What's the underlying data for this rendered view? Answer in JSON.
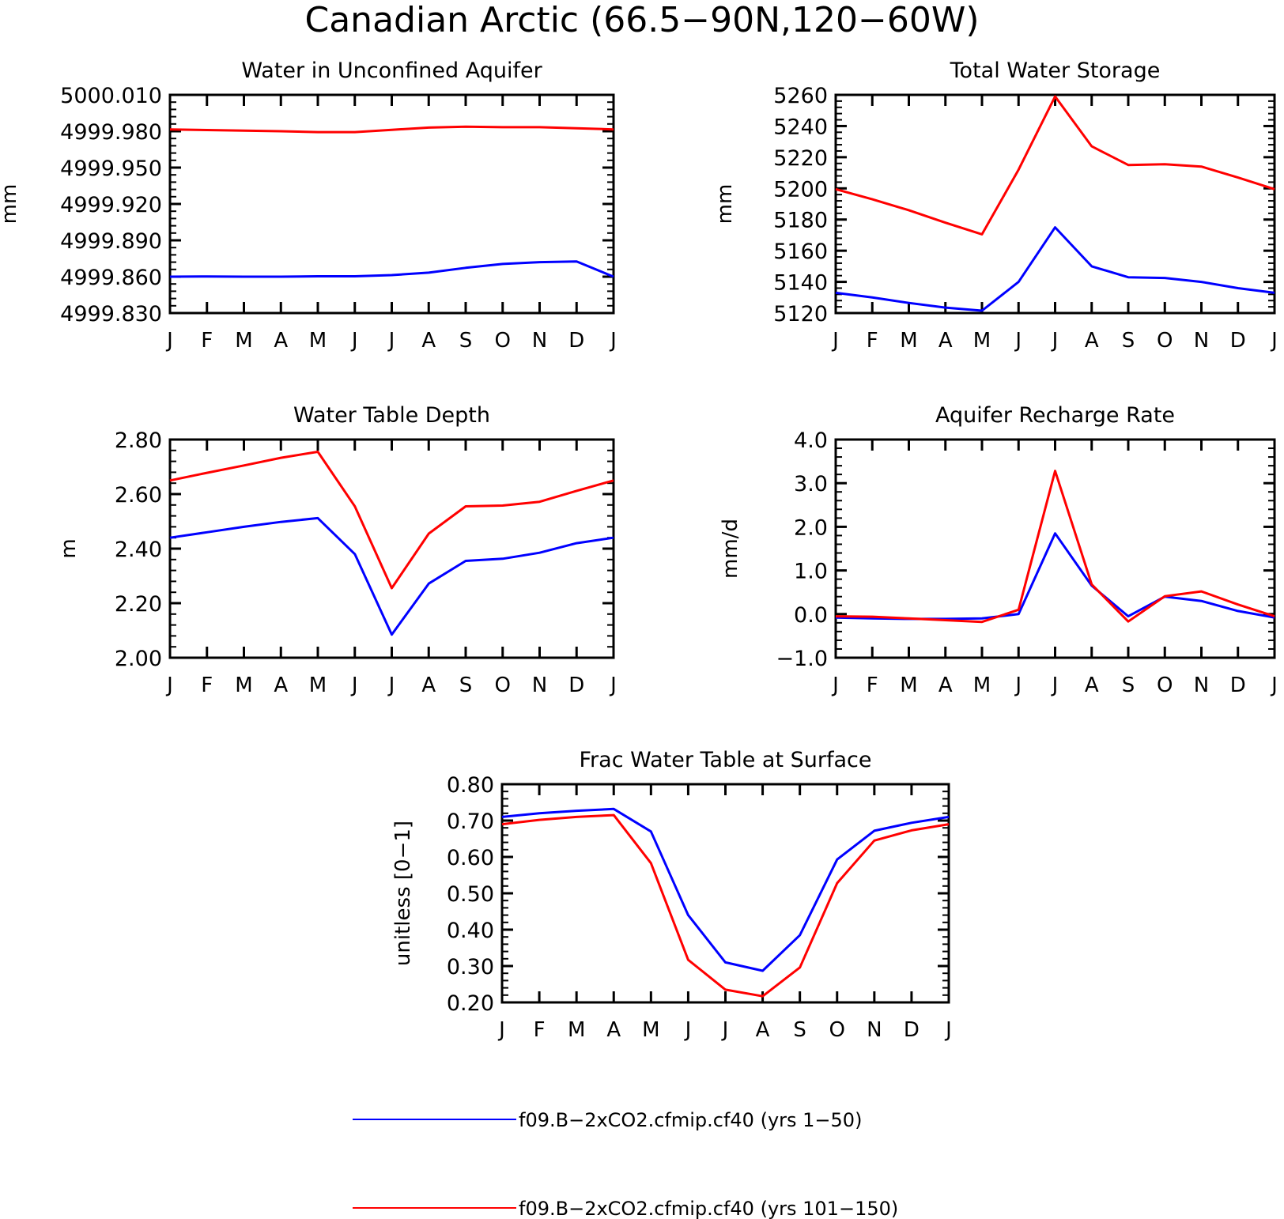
{
  "title": "Canadian Arctic (66.5−90N,120−60W)",
  "months": [
    "J",
    "F",
    "M",
    "A",
    "M",
    "J",
    "J",
    "A",
    "S",
    "O",
    "N",
    "D",
    "J"
  ],
  "colors": {
    "run1": "#0000ff",
    "run2": "#ff0000",
    "axis": "#000000"
  },
  "legend": [
    {
      "label": "f09.B−2xCO2.cfmip.cf40 (yrs 1−50)",
      "color": "#0000ff"
    },
    {
      "label": "f09.B−2xCO2.cfmip.cf40 (yrs 101−150)",
      "color": "#ff0000"
    }
  ],
  "chart_data": [
    {
      "type": "line",
      "title": "Water in Unconfined Aquifer",
      "ylabel": "mm",
      "ylim": [
        4999.83,
        5000.01
      ],
      "yticks": [
        "5000.010",
        "4999.980",
        "4999.950",
        "4999.920",
        "4999.890",
        "4999.860",
        "4999.830"
      ],
      "ytick_values": [
        5000.01,
        4999.98,
        4999.95,
        4999.92,
        4999.89,
        4999.86,
        4999.83
      ],
      "series": [
        {
          "values": [
            4999.86,
            4999.8602,
            4999.86,
            4999.86,
            4999.8603,
            4999.8603,
            4999.8613,
            4999.8633,
            4999.8673,
            4999.8705,
            4999.872,
            4999.8725,
            4999.86
          ],
          "color": "#0000ff"
        },
        {
          "values": [
            4999.9815,
            4999.981,
            4999.9805,
            4999.98,
            4999.9793,
            4999.9793,
            4999.9812,
            4999.983,
            4999.9837,
            4999.9833,
            4999.9833,
            4999.9825,
            4999.9815
          ],
          "color": "#ff0000"
        }
      ]
    },
    {
      "type": "line",
      "title": "Total Water Storage",
      "ylabel": "mm",
      "ylim": [
        5120,
        5260
      ],
      "yticks": [
        "5260",
        "5240",
        "5220",
        "5200",
        "5180",
        "5160",
        "5140",
        "5120"
      ],
      "ytick_values": [
        5260,
        5240,
        5220,
        5200,
        5180,
        5160,
        5140,
        5120
      ],
      "series": [
        {
          "values": [
            5133,
            5130,
            5126.5,
            5123.5,
            5121.5,
            5140,
            5175,
            5150,
            5143,
            5142.5,
            5140,
            5136,
            5133
          ],
          "color": "#0000ff"
        },
        {
          "values": [
            5199.5,
            5193,
            5186,
            5178,
            5170.5,
            5212,
            5259,
            5227,
            5215,
            5215.5,
            5214,
            5207,
            5199.5
          ],
          "color": "#ff0000"
        }
      ]
    },
    {
      "type": "line",
      "title": "Water Table Depth",
      "ylabel": "m",
      "ylim": [
        2.0,
        2.8
      ],
      "yticks": [
        "2.80",
        "2.60",
        "2.40",
        "2.20",
        "2.00"
      ],
      "ytick_values": [
        2.8,
        2.6,
        2.4,
        2.2,
        2.0
      ],
      "series": [
        {
          "values": [
            2.44,
            2.46,
            2.48,
            2.498,
            2.512,
            2.38,
            2.085,
            2.272,
            2.355,
            2.363,
            2.385,
            2.42,
            2.44
          ],
          "color": "#0000ff"
        },
        {
          "values": [
            2.65,
            2.678,
            2.705,
            2.733,
            2.755,
            2.555,
            2.255,
            2.455,
            2.555,
            2.558,
            2.572,
            2.612,
            2.65
          ],
          "color": "#ff0000"
        }
      ]
    },
    {
      "type": "line",
      "title": "Aquifer Recharge Rate",
      "ylabel": "mm/d",
      "ylim": [
        -1.0,
        4.0
      ],
      "yticks": [
        "4.0",
        "3.0",
        "2.0",
        "1.0",
        "0.0",
        "−1.0"
      ],
      "ytick_values": [
        4.0,
        3.0,
        2.0,
        1.0,
        0.0,
        -1.0
      ],
      "series": [
        {
          "values": [
            -0.08,
            -0.1,
            -0.11,
            -0.11,
            -0.1,
            0.0,
            1.85,
            0.65,
            -0.05,
            0.4,
            0.3,
            0.07,
            -0.08
          ],
          "color": "#0000ff"
        },
        {
          "values": [
            -0.05,
            -0.06,
            -0.1,
            -0.14,
            -0.18,
            0.1,
            3.28,
            0.68,
            -0.17,
            0.41,
            0.52,
            0.22,
            -0.05
          ],
          "color": "#ff0000"
        }
      ]
    },
    {
      "type": "line",
      "title": "Frac Water Table at Surface",
      "ylabel": "unitless [0−1]",
      "ylim": [
        0.2,
        0.8
      ],
      "yticks": [
        "0.80",
        "0.70",
        "0.60",
        "0.50",
        "0.40",
        "0.30",
        "0.20"
      ],
      "ytick_values": [
        0.8,
        0.7,
        0.6,
        0.5,
        0.4,
        0.3,
        0.2
      ],
      "series": [
        {
          "values": [
            0.71,
            0.72,
            0.727,
            0.732,
            0.67,
            0.44,
            0.31,
            0.287,
            0.385,
            0.593,
            0.672,
            0.694,
            0.71
          ],
          "color": "#0000ff"
        },
        {
          "values": [
            0.69,
            0.702,
            0.71,
            0.715,
            0.583,
            0.317,
            0.235,
            0.217,
            0.296,
            0.528,
            0.645,
            0.673,
            0.69
          ],
          "color": "#ff0000"
        }
      ]
    }
  ]
}
